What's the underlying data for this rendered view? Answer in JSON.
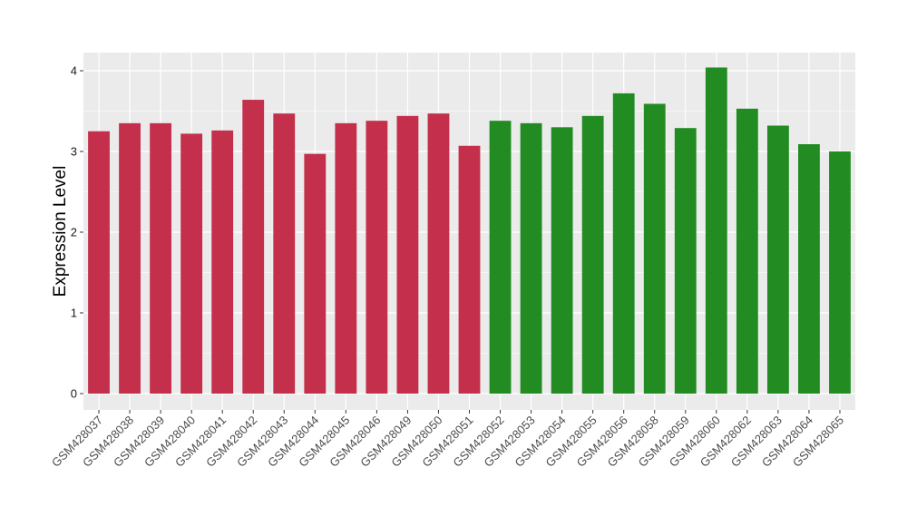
{
  "chart_data": {
    "type": "bar",
    "title": "",
    "xlabel": "",
    "ylabel": "Expression Level",
    "ylim": [
      0,
      4.15
    ],
    "yticks": [
      0,
      1,
      2,
      3,
      4
    ],
    "grid": true,
    "background": "#ebebeb",
    "gridline_color": "#ffffff",
    "categories": [
      "GSM428037",
      "GSM428038",
      "GSM428039",
      "GSM428040",
      "GSM428041",
      "GSM428042",
      "GSM428043",
      "GSM428044",
      "GSM428045",
      "GSM428046",
      "GSM428049",
      "GSM428050",
      "GSM428051",
      "GSM428052",
      "GSM428053",
      "GSM428054",
      "GSM428055",
      "GSM428056",
      "GSM428058",
      "GSM428059",
      "GSM428060",
      "GSM428062",
      "GSM428063",
      "GSM428064",
      "GSM428065"
    ],
    "values": [
      3.25,
      3.35,
      3.35,
      3.22,
      3.26,
      3.64,
      3.47,
      2.97,
      3.35,
      3.38,
      3.44,
      3.47,
      3.07,
      3.38,
      3.35,
      3.3,
      3.44,
      3.72,
      3.59,
      3.29,
      4.04,
      3.53,
      3.32,
      3.09,
      3.0
    ],
    "groups": [
      "a",
      "a",
      "a",
      "a",
      "a",
      "a",
      "a",
      "a",
      "a",
      "a",
      "a",
      "a",
      "a",
      "b",
      "b",
      "b",
      "b",
      "b",
      "b",
      "b",
      "b",
      "b",
      "b",
      "b",
      "b"
    ],
    "group_colors": {
      "a": "#c4304b",
      "b": "#228b22"
    }
  }
}
